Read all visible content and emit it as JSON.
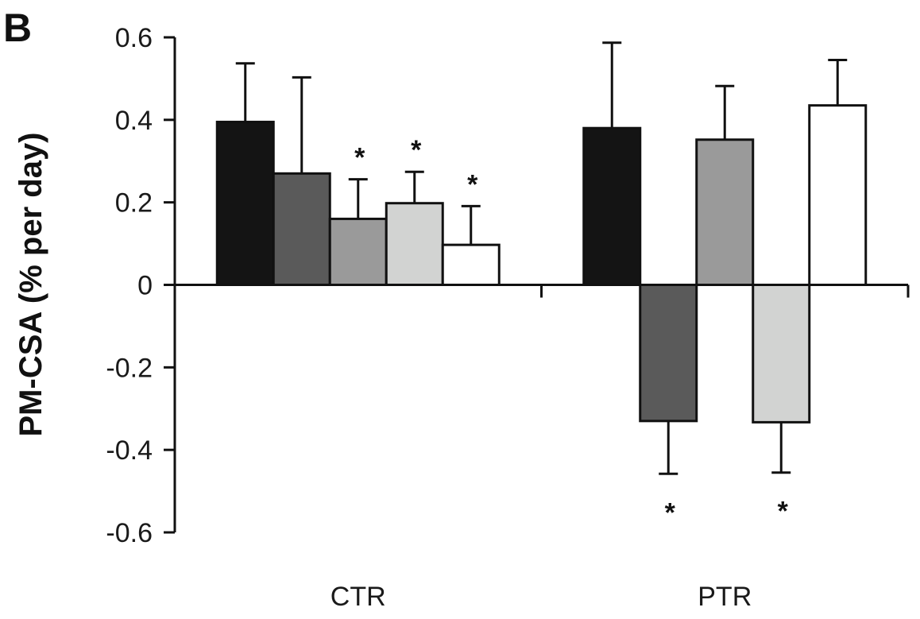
{
  "panel_label": "B",
  "chart_data": {
    "type": "bar",
    "title": "",
    "xlabel": "",
    "ylabel": "PM-CSA (% per day)",
    "ylim": [
      -0.6,
      0.6
    ],
    "yticks": [
      0.6,
      0.4,
      0.2,
      0,
      -0.2,
      -0.4,
      -0.6
    ],
    "ytick_labels": [
      "0.6",
      "0.4",
      "0.2",
      "0",
      "-0.2",
      "-0.4",
      "-0.6"
    ],
    "grid": false,
    "categories": [
      "CTR",
      "PTR"
    ],
    "series": [
      {
        "color": "#141414",
        "values": [
          0.395,
          0.38
        ],
        "errors": [
          0.142,
          0.207
        ],
        "significant": [
          false,
          false
        ]
      },
      {
        "color": "#5a5a5a",
        "values": [
          0.27,
          -0.33
        ],
        "errors": [
          0.233,
          0.128
        ],
        "significant": [
          false,
          true
        ]
      },
      {
        "color": "#9a9a9a",
        "values": [
          0.16,
          0.352
        ],
        "errors": [
          0.096,
          0.13
        ],
        "significant": [
          true,
          false
        ]
      },
      {
        "color": "#d2d3d2",
        "values": [
          0.198,
          -0.333
        ],
        "errors": [
          0.076,
          0.122
        ],
        "significant": [
          true,
          true
        ]
      },
      {
        "color": "#ffffff",
        "values": [
          0.097,
          0.435
        ],
        "errors": [
          0.094,
          0.11
        ],
        "significant": [
          true,
          false
        ]
      }
    ],
    "significance_marker": "*"
  }
}
